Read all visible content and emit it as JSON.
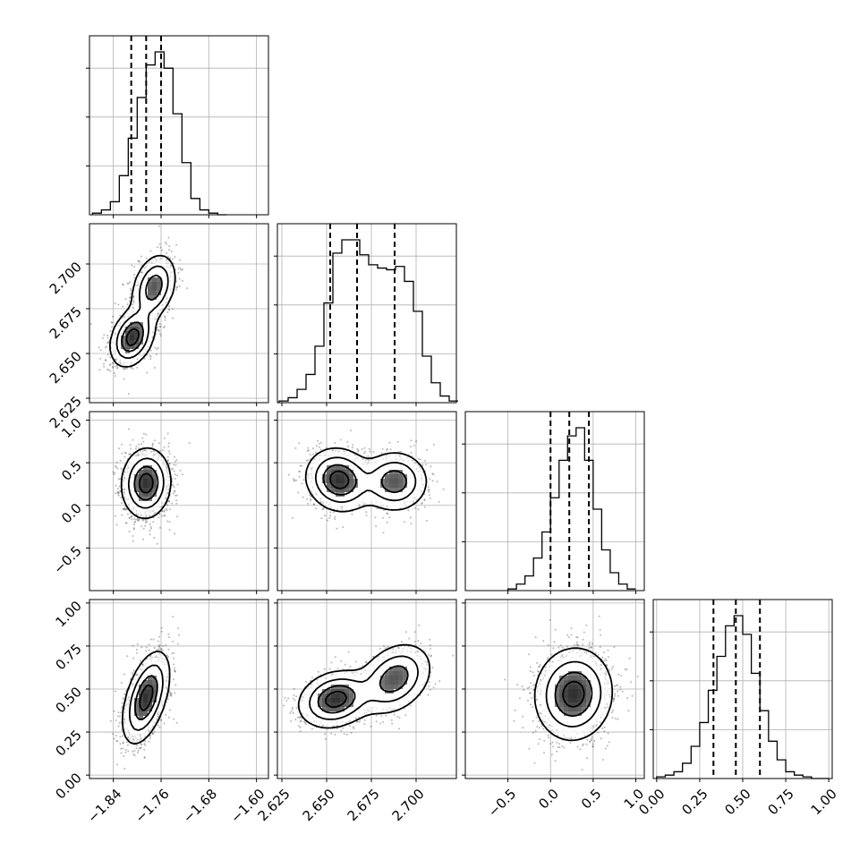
{
  "chart_data": {
    "type": "corner",
    "parameters": 4,
    "colors": {
      "hist": "#000000",
      "grid": "#b0b0b0",
      "points": "#000000",
      "density": "#000000",
      "background": "#ffffff"
    },
    "grid": true,
    "quantile_lines": "dashed",
    "variables": [
      {
        "range": [
          -1.88,
          -1.58
        ],
        "ticks": [
          -1.84,
          -1.76,
          -1.68,
          -1.6
        ],
        "tick_labels": [
          "−1.84",
          "−1.76",
          "−1.68",
          "−1.60"
        ],
        "quantiles": [
          -1.81,
          -1.785,
          -1.76
        ],
        "hist_bins": [
          -1.875,
          -1.86,
          -1.845,
          -1.83,
          -1.815,
          -1.8,
          -1.785,
          -1.77,
          -1.755,
          -1.74,
          -1.725,
          -1.71,
          -1.695,
          -1.68,
          -1.665
        ],
        "hist_counts": [
          1,
          3,
          8,
          24,
          47,
          72,
          92,
          100,
          90,
          62,
          32,
          10,
          3,
          1,
          0
        ]
      },
      {
        "range": [
          2.6225,
          2.7225
        ],
        "ticks": [
          2.625,
          2.65,
          2.675,
          2.7
        ],
        "tick_labels": [
          "2.625",
          "2.650",
          "2.675",
          "2.700"
        ],
        "quantiles": [
          2.652,
          2.667,
          2.688
        ],
        "hist_bins": [
          2.6235,
          2.6285,
          2.6335,
          2.6385,
          2.6435,
          2.6485,
          2.6535,
          2.6585,
          2.6635,
          2.6685,
          2.6735,
          2.6785,
          2.6835,
          2.6885,
          2.6935,
          2.6985,
          2.7035,
          2.7085,
          2.7135,
          2.7185
        ],
        "hist_counts": [
          1,
          3,
          8,
          17,
          34,
          60,
          90,
          98,
          98,
          89,
          83,
          81,
          80,
          82,
          73,
          55,
          28,
          12,
          4,
          1
        ]
      },
      {
        "range": [
          -1.0,
          1.1
        ],
        "ticks": [
          -0.5,
          0.0,
          0.5,
          1.0
        ],
        "tick_labels": [
          "−0.5",
          "0.0",
          "0.5",
          "1.0"
        ],
        "quantiles": [
          0.0,
          0.22,
          0.45
        ],
        "hist_bins": [
          -0.5,
          -0.4,
          -0.3,
          -0.2,
          -0.1,
          0.0,
          0.1,
          0.2,
          0.3,
          0.4,
          0.5,
          0.6,
          0.7,
          0.8,
          0.9
        ],
        "hist_counts": [
          1,
          4,
          9,
          20,
          36,
          57,
          80,
          95,
          100,
          80,
          50,
          25,
          11,
          4,
          1
        ]
      },
      {
        "range": [
          -0.02,
          1.02
        ],
        "ticks": [
          0.0,
          0.25,
          0.5,
          0.75,
          1.0
        ],
        "tick_labels": [
          "0.00",
          "0.25",
          "0.50",
          "0.75",
          "1.00"
        ],
        "quantiles": [
          0.33,
          0.46,
          0.6
        ],
        "hist_bins": [
          0.0,
          0.05,
          0.1,
          0.15,
          0.2,
          0.25,
          0.3,
          0.35,
          0.4,
          0.45,
          0.5,
          0.55,
          0.6,
          0.65,
          0.7,
          0.75,
          0.8,
          0.85,
          0.9,
          0.95
        ],
        "hist_counts": [
          1,
          2,
          4,
          9,
          19,
          33,
          52,
          72,
          90,
          96,
          85,
          62,
          40,
          22,
          11,
          4,
          2,
          1,
          0,
          0
        ]
      }
    ],
    "pairs": [
      {
        "x_var": 0,
        "y_var": 1,
        "modes": [
          {
            "mean": [
              -1.808,
              2.659
            ],
            "sd": [
              0.018,
              0.008
            ],
            "rho": 0.3,
            "weight": 0.55
          },
          {
            "mean": [
              -1.772,
              2.687
            ],
            "sd": [
              0.018,
              0.009
            ],
            "rho": 0.3,
            "weight": 0.45
          }
        ]
      },
      {
        "x_var": 0,
        "y_var": 2,
        "modes": [
          {
            "mean": [
              -1.785,
              0.26
            ],
            "sd": [
              0.02,
              0.2
            ],
            "rho": 0.05,
            "weight": 1.0
          }
        ]
      },
      {
        "x_var": 1,
        "y_var": 2,
        "modes": [
          {
            "mean": [
              2.657,
              0.3
            ],
            "sd": [
              0.009,
              0.18
            ],
            "rho": -0.1,
            "weight": 0.55
          },
          {
            "mean": [
              2.688,
              0.28
            ],
            "sd": [
              0.009,
              0.17
            ],
            "rho": 0.0,
            "weight": 0.45
          }
        ]
      },
      {
        "x_var": 0,
        "y_var": 3,
        "modes": [
          {
            "mean": [
              -1.785,
              0.45
            ],
            "sd": [
              0.019,
              0.13
            ],
            "rho": 0.5,
            "weight": 1.0
          }
        ]
      },
      {
        "x_var": 1,
        "y_var": 3,
        "modes": [
          {
            "mean": [
              2.655,
              0.44
            ],
            "sd": [
              0.01,
              0.08
            ],
            "rho": 0.2,
            "weight": 0.55
          },
          {
            "mean": [
              2.688,
              0.56
            ],
            "sd": [
              0.01,
              0.1
            ],
            "rho": 0.3,
            "weight": 0.45
          }
        ]
      },
      {
        "x_var": 2,
        "y_var": 3,
        "modes": [
          {
            "mean": [
              0.27,
              0.47
            ],
            "sd": [
              0.22,
              0.13
            ],
            "rho": 0.05,
            "weight": 1.0
          }
        ]
      }
    ]
  }
}
